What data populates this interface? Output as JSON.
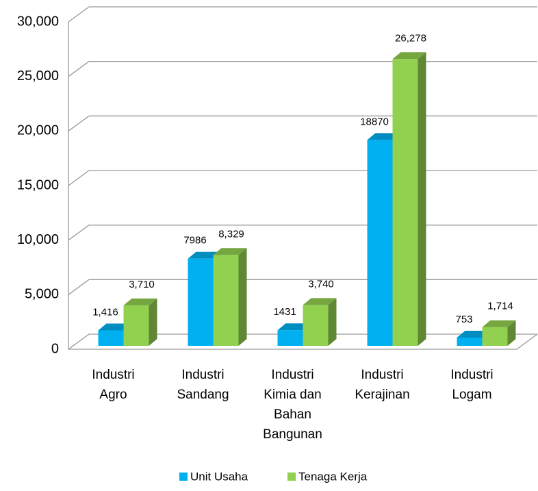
{
  "chart_data": {
    "type": "bar3d",
    "categories": [
      "Industri\nAgro",
      "Industri\nSandang",
      "Industri\nKimia dan\nBahan\nBangunan",
      "Industri\nKerajinan",
      "Industri\nLogam"
    ],
    "series": [
      {
        "name": "Unit Usaha",
        "color": "#00b0f0",
        "values": [
          1416,
          7986,
          1431,
          18870,
          753
        ],
        "value_labels": [
          "1,416",
          "7986",
          "1431",
          "18870",
          "753"
        ]
      },
      {
        "name": "Tenaga Kerja",
        "color": "#92d050",
        "values": [
          3710,
          8329,
          3740,
          26278,
          1714
        ],
        "value_labels": [
          "3,710",
          "8,329",
          "3,740",
          "26,278",
          "1,714"
        ]
      }
    ],
    "ylim": [
      0,
      30000
    ],
    "yticks": [
      0,
      {
        "value": 5000,
        "label": "5,000"
      },
      {
        "value": 10000,
        "label": "10,000"
      },
      {
        "value": 15000,
        "label": "15,000"
      },
      {
        "value": 20000,
        "label": "20,000"
      },
      {
        "value": 25000,
        "label": "25,000"
      },
      {
        "value": 30000,
        "label": "30,000"
      }
    ],
    "grid": true,
    "legend": "bottom"
  }
}
